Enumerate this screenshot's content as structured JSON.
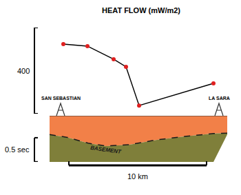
{
  "chart_data": [
    {
      "type": "line",
      "title": "HEAT FLOW (mW/m2)",
      "x": [
        0.2,
        1.95,
        3.85,
        4.75,
        5.7,
        11.1
      ],
      "values": [
        323,
        314,
        253,
        218,
        38,
        141
      ],
      "color": "#000000",
      "colors": [
        "#e02020",
        "#e02020",
        "#e02020",
        "#e02020",
        "#e02020",
        "#e02020"
      ],
      "marker": "circle",
      "xlim": [
        -4.4,
        13.1
      ],
      "ylim": [
        0,
        400
      ],
      "tick_labels": false,
      "scale_bars": [
        {
          "axis": "y",
          "value": 400,
          "label": "400"
        }
      ]
    },
    {
      "type": "cross_section",
      "x": [
        -0.8,
        0.5,
        2,
        3.3,
        5,
        7,
        9,
        11.1,
        12.1
      ],
      "basement": [
        0.39,
        0.45,
        0.57,
        0.63,
        0.6,
        0.5,
        0.43,
        0.37,
        0.36
      ],
      "base": [
        0.96,
        0.96,
        0.96,
        0.96,
        0.96,
        0.96,
        0.96,
        0.96,
        0.39
      ],
      "colors": [
        "#f28048",
        "#7f7f3a"
      ],
      "label": "BASEMENT",
      "xlim": [
        -4.4,
        13.1
      ],
      "ylim": [
        0.96,
        0
      ],
      "tick_labels": false,
      "wells": [
        {
          "label": "SAN SEBASTIAN",
          "x": 0
        },
        {
          "label": "LA SARA",
          "x": 11.5
        }
      ],
      "scale_bars": [
        {
          "axis": "y",
          "value": 0.5,
          "label": "0.5 sec"
        },
        {
          "axis": "x",
          "value": 10,
          "label": "10 km"
        }
      ]
    }
  ]
}
